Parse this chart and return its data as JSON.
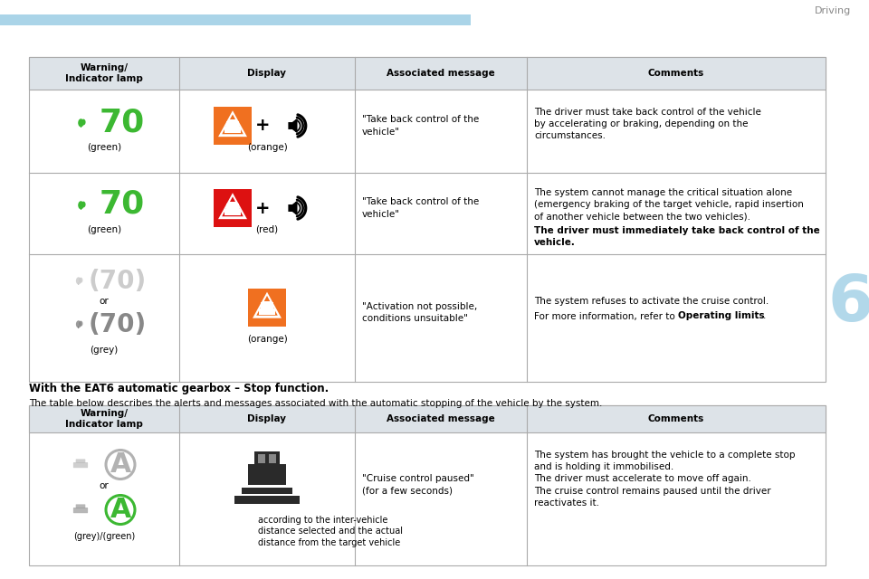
{
  "page_title": "Driving",
  "chapter_number": "6",
  "header_bar_color": "#aad4e8",
  "bg_color": "#ffffff",
  "header_bg": "#dde3e8",
  "table_border_color": "#aaaaaa",
  "green_color": "#3cb832",
  "grey_color": "#aaaaaa",
  "orange_color": "#f07020",
  "red_color": "#dd1111",
  "chapter_color": "#aad4e8",
  "driving_text_color": "#888888",
  "col_headers": [
    "Warning/\nIndicator lamp",
    "Display",
    "Associated message",
    "Comments"
  ],
  "section_title": "With the EAT6 automatic gearbox – Stop function.",
  "section_subtitle": "The table below describes the alerts and messages associated with the automatic stopping of the vehicle by the system.",
  "t1_rows": [
    {
      "lamp_green": true,
      "lamp_num": "70",
      "lamp_label": "(green)",
      "display_bg": "#f07020",
      "display_label": "(orange)",
      "has_speaker": true,
      "assoc": "\"Take back control of the\nvehicle\"",
      "comment_normal": "The driver must take back control of the vehicle\nby accelerating or braking, depending on the\ncircumstances.",
      "comment_bold": ""
    },
    {
      "lamp_green": true,
      "lamp_num": "70",
      "lamp_label": "(green)",
      "display_bg": "#dd1111",
      "display_label": "(red)",
      "has_speaker": true,
      "assoc": "\"Take back control of the\nvehicle\"",
      "comment_normal": "The system cannot manage the critical situation alone\n(emergency braking of the target vehicle, rapid insertion\nof another vehicle between the two vehicles).",
      "comment_bold": "The driver must immediately take back control of the\nvehicle."
    },
    {
      "lamp_green": false,
      "lamp_num": "(70)",
      "lamp_label": "(grey)",
      "display_bg": "#f07020",
      "display_label": "(orange)",
      "has_speaker": false,
      "assoc": "\"Activation not possible,\nconditions unsuitable\"",
      "comment_normal": "The system refuses to activate the cruise control.\nFor more information, refer to ",
      "comment_bold": "Operating limits",
      "comment_suffix": "."
    }
  ],
  "t2_row": {
    "lamp_label": "(grey)/(green)",
    "assoc": "\"Cruise control paused\"\n(for a few seconds)",
    "display_caption": "according to the inter-vehicle\ndistance selected and the actual\ndistance from the target vehicle",
    "comment": "The system has brought the vehicle to a complete stop\nand is holding it immobilised.\nThe driver must accelerate to move off again.\nThe cruise control remains paused until the driver\nreactivates it."
  }
}
